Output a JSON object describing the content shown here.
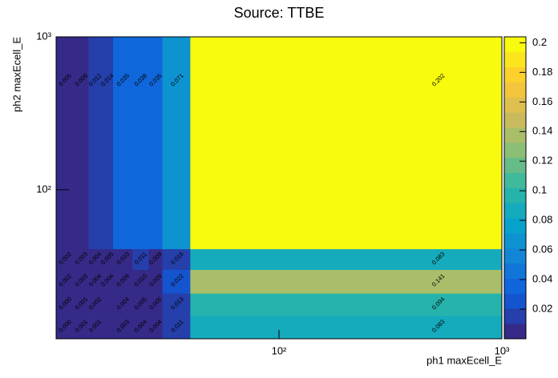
{
  "chart_data": {
    "type": "heatmap",
    "title": "Source: TTBE",
    "x_label": "ph1 maxEcell_E",
    "y_label": "ph2 maxEcell_E",
    "x_bins": [
      10,
      12,
      14,
      16,
      18,
      22,
      26,
      30,
      40,
      1000
    ],
    "y_bins": [
      10.6,
      15,
      21,
      30,
      41,
      1000
    ],
    "values": [
      [
        0,
        0.001,
        0.001,
        0,
        0.003,
        0.004,
        0.004,
        0.011,
        0.083
      ],
      [
        0,
        0.001,
        0.002,
        0,
        0.004,
        0.005,
        0.005,
        0.013,
        0.094
      ],
      [
        0.002,
        0.003,
        0.004,
        0.004,
        0.009,
        0.01,
        0.009,
        0.022,
        0.141
      ],
      [
        0.002,
        0.003,
        0.004,
        0.005,
        0.01,
        0.011,
        0.009,
        0.016,
        0.083
      ],
      [
        0.005,
        0.009,
        0.012,
        0.014,
        0.035,
        0.038,
        0.035,
        0.071,
        0.202
      ]
    ],
    "value_labels": [
      [
        "0.000",
        "0.001",
        "0.001",
        null,
        "0.003",
        "0.004",
        "0.004",
        "0.011",
        "0.083"
      ],
      [
        "0.000",
        "0.001",
        "0.002",
        null,
        "0.004",
        "0.005",
        "0.005",
        "0.013",
        "0.094"
      ],
      [
        "0.002",
        "0.003",
        "0.004",
        "0.004",
        "0.009",
        "0.010",
        "0.009",
        "0.022",
        "0.141"
      ],
      [
        "0.002",
        "0.003",
        "0.004",
        "0.005",
        "0.010",
        "0.011",
        "0.009",
        "0.016",
        "0.083"
      ],
      [
        "0.005",
        "0.009",
        "0.012",
        "0.014",
        "0.035",
        "0.038",
        "0.035",
        "0.071",
        "0.202"
      ]
    ],
    "xlim": [
      10,
      1000
    ],
    "ylim": [
      10.6,
      1000
    ],
    "xticks": [
      {
        "value": 100,
        "label": "10²"
      },
      {
        "value": 1000,
        "label": "10³"
      }
    ],
    "yticks": [
      {
        "value": 100,
        "label": "10²"
      },
      {
        "value": 1000,
        "label": "10³"
      }
    ],
    "log_x": true,
    "log_y": true,
    "zlim": [
      0,
      0.204
    ],
    "zticks": [
      0.02,
      0.04,
      0.06,
      0.08,
      0.1,
      0.12,
      0.14,
      0.16,
      0.18,
      0.2
    ],
    "levels": 20,
    "colorscale": [
      "#352a87",
      "#0f5cdd",
      "#1481d6",
      "#06a4ca",
      "#2eb7a4",
      "#87bf77",
      "#d1bb59",
      "#fec832",
      "#f9fb0e"
    ]
  }
}
